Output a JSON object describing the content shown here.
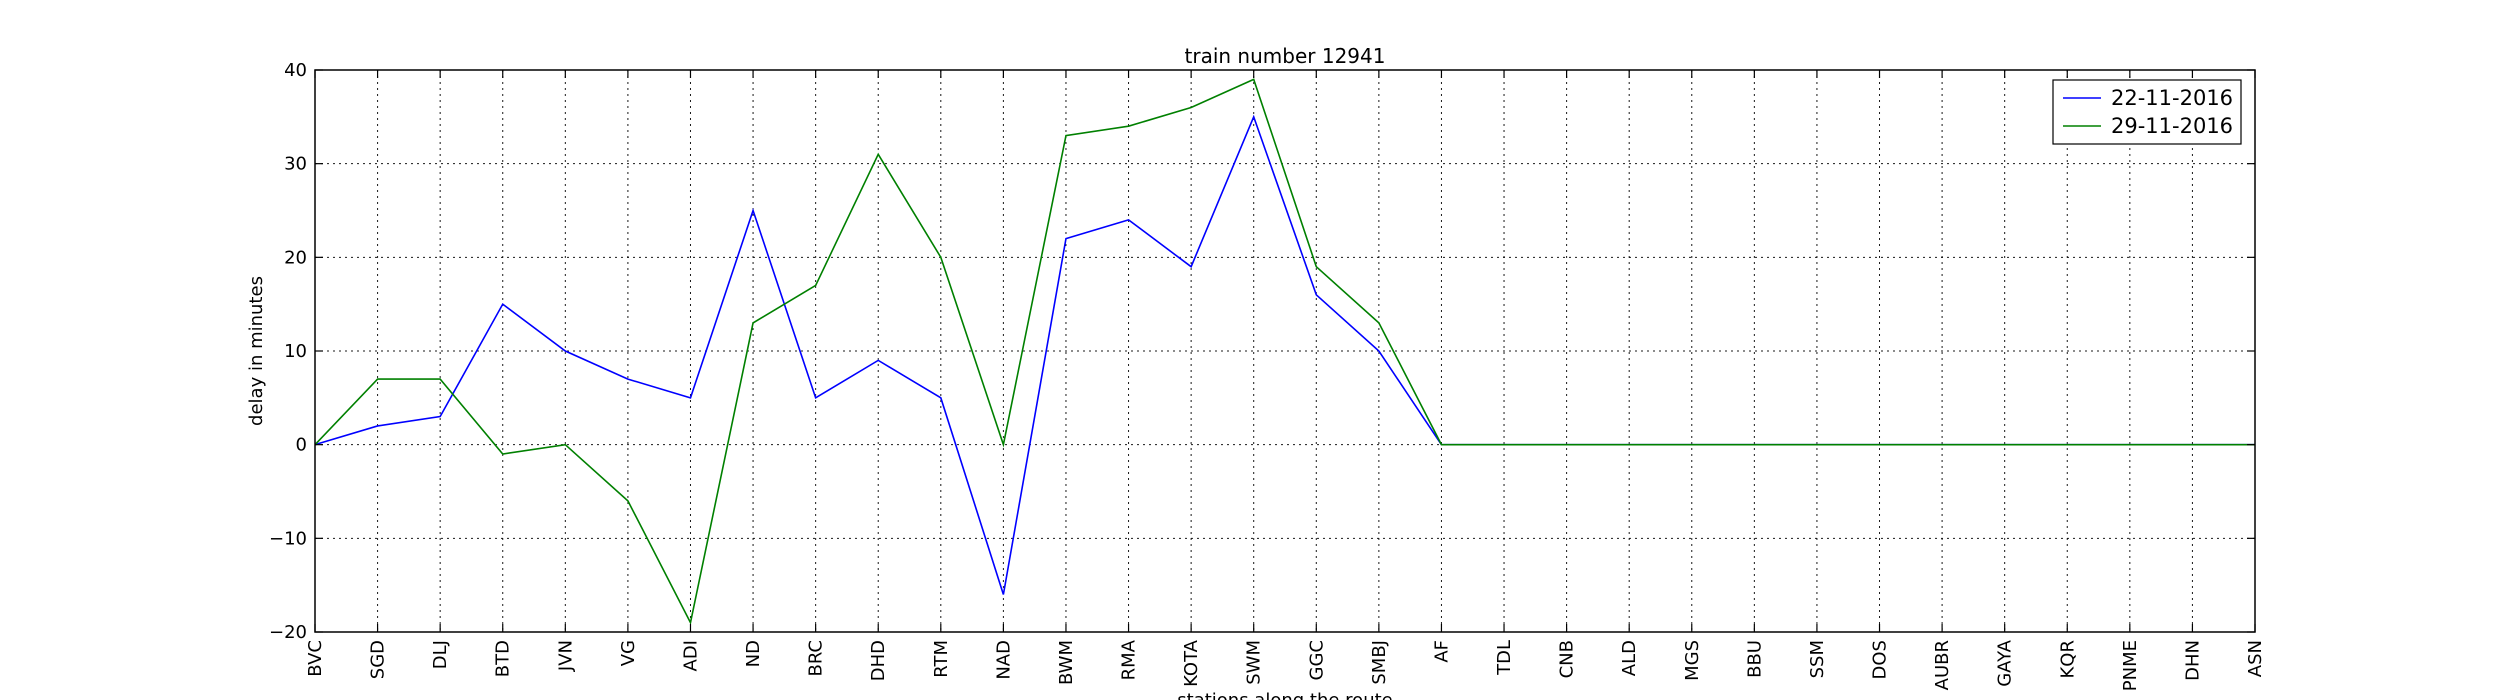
{
  "chart_data": {
    "type": "line",
    "title": "train number 12941",
    "xlabel": "stations along the route",
    "ylabel": "delay in minutes",
    "ylim": [
      -20,
      40
    ],
    "yticks": [
      -20,
      -10,
      0,
      10,
      20,
      30,
      40
    ],
    "yticklabels": [
      "−20",
      "−10",
      "0",
      "10",
      "20",
      "30",
      "40"
    ],
    "grid": true,
    "legend_position": "top-right",
    "categories": [
      "BVC",
      "SGD",
      "DLJ",
      "BTD",
      "JVN",
      "VG",
      "ADI",
      "ND",
      "BRC",
      "DHD",
      "RTM",
      "NAD",
      "BWM",
      "RMA",
      "KOTA",
      "SWM",
      "GGC",
      "SMBJ",
      "AF",
      "TDL",
      "CNB",
      "ALD",
      "MGS",
      "BBU",
      "SSM",
      "DOS",
      "AUBR",
      "GAYA",
      "KQR",
      "PNME",
      "DHN",
      "ASN"
    ],
    "series": [
      {
        "name": "22-11-2016",
        "color": "#0000ff",
        "values": [
          0,
          2,
          3,
          15,
          10,
          7,
          5,
          25,
          5,
          9,
          5,
          -16,
          22,
          24,
          19,
          35,
          16,
          10,
          0,
          0,
          0,
          0,
          0,
          0,
          0,
          0,
          0,
          0,
          0,
          0,
          0,
          0
        ]
      },
      {
        "name": "29-11-2016",
        "color": "#008000",
        "values": [
          0,
          7,
          7,
          -1,
          0,
          -6,
          -19,
          13,
          17,
          31,
          20,
          0,
          33,
          34,
          36,
          39,
          19,
          13,
          0,
          0,
          0,
          0,
          0,
          0,
          0,
          0,
          0,
          0,
          0,
          0,
          0,
          0
        ]
      }
    ]
  }
}
